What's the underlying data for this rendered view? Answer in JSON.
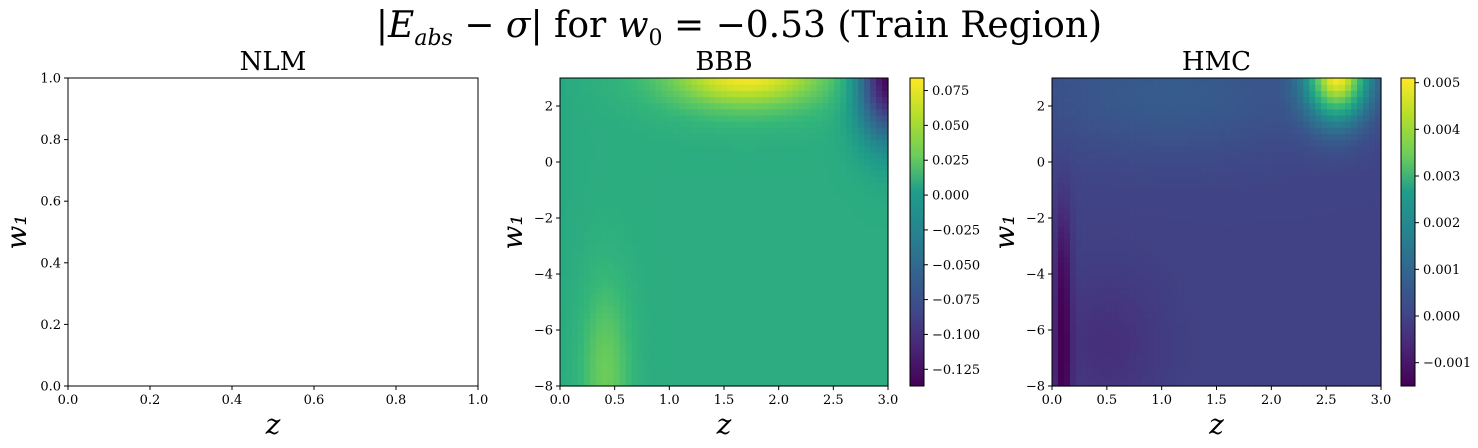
{
  "figure": {
    "suptitle": "|E_abs − σ| for w₀ = −0.53 (Train Region)"
  },
  "chart_data": [
    {
      "type": "heatmap",
      "title": "NLM",
      "xlabel": "z",
      "ylabel": "w₁",
      "xlim": [
        0.0,
        1.0
      ],
      "ylim": [
        0.0,
        1.0
      ],
      "xticks": [
        "0.0",
        "0.2",
        "0.4",
        "0.6",
        "0.8",
        "1.0"
      ],
      "yticks": [
        "0.0",
        "0.2",
        "0.4",
        "0.6",
        "0.8",
        "1.0"
      ],
      "empty": true,
      "colorbar": null
    },
    {
      "type": "heatmap",
      "title": "BBB",
      "xlabel": "z",
      "ylabel": "w₁",
      "xlim": [
        0.0,
        3.0
      ],
      "ylim": [
        -8,
        3
      ],
      "xticks": [
        "0.0",
        "0.5",
        "1.0",
        "1.5",
        "2.0",
        "2.5",
        "3.0"
      ],
      "yticks": [
        "−8",
        "−6",
        "−4",
        "−2",
        "0",
        "2"
      ],
      "colormap": "viridis",
      "colorbar": {
        "range": [
          -0.137,
          0.084
        ],
        "ticks": [
          "−0.125",
          "−0.100",
          "−0.075",
          "−0.050",
          "−0.025",
          "0.000",
          "0.025",
          "0.050",
          "0.075"
        ]
      },
      "features": [
        {
          "x": 1.7,
          "y": 3.0,
          "value": 0.084
        },
        {
          "x": 0.4,
          "y": -7.5,
          "value": 0.03
        },
        {
          "x": 3.0,
          "y": 3.0,
          "value": -0.137
        },
        {
          "x": 1.5,
          "y": -3.0,
          "value": 0.0
        }
      ]
    },
    {
      "type": "heatmap",
      "title": "HMC",
      "xlabel": "z",
      "ylabel": "w₁",
      "xlim": [
        0.0,
        3.0
      ],
      "ylim": [
        -8,
        3
      ],
      "xticks": [
        "0.0",
        "0.5",
        "1.0",
        "1.5",
        "2.0",
        "2.5",
        "3.0"
      ],
      "yticks": [
        "−8",
        "−6",
        "−4",
        "−2",
        "0",
        "2"
      ],
      "colormap": "viridis",
      "colorbar": {
        "range": [
          -0.0015,
          0.0051
        ],
        "ticks": [
          "−0.001",
          "0.000",
          "0.001",
          "0.002",
          "0.003",
          "0.004",
          "0.005"
        ]
      },
      "features": [
        {
          "x": 2.6,
          "y": 3.0,
          "value": 0.0051
        },
        {
          "x": 0.1,
          "y": -7.5,
          "value": -0.0015
        },
        {
          "x": 1.5,
          "y": -3.0,
          "value": -0.0002
        },
        {
          "x": 1.0,
          "y": 2.0,
          "value": 0.0004
        }
      ]
    }
  ]
}
